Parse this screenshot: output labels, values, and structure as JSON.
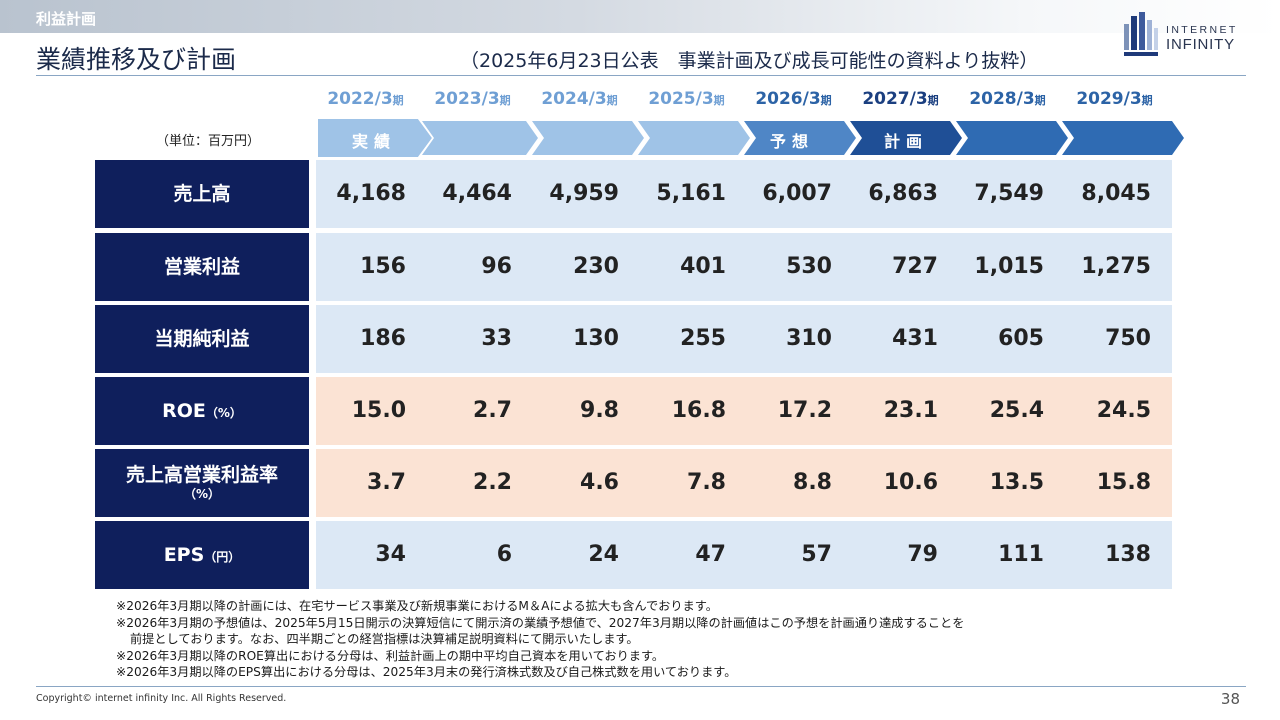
{
  "header": {
    "section_label": "利益計画",
    "title": "業績推移及び計画",
    "subtitle": "（2025年6月23日公表　事業計画及び成長可能性の資料より抜粋）"
  },
  "logo": {
    "line1": "INTERNET",
    "line2": "INFINITY"
  },
  "table": {
    "unit": "（単位：百万円）",
    "period_suffix": "期",
    "periods": [
      {
        "year": "2022/3",
        "color": "#6f9fd4"
      },
      {
        "year": "2023/3",
        "color": "#6f9fd4"
      },
      {
        "year": "2024/3",
        "color": "#6f9fd4"
      },
      {
        "year": "2025/3",
        "color": "#6f9fd4"
      },
      {
        "year": "2026/3",
        "color": "#2c63a6"
      },
      {
        "year": "2027/3",
        "color": "#1b3f80"
      },
      {
        "year": "2028/3",
        "color": "#2c63a6"
      },
      {
        "year": "2029/3",
        "color": "#2c63a6"
      }
    ],
    "phase_labels": {
      "actual": "実績",
      "forecast": "予想",
      "plan": "計画"
    },
    "rows": [
      {
        "label": "売上高",
        "unit_suffix": "",
        "label2": "",
        "values": [
          "4,168",
          "4,464",
          "4,959",
          "5,161",
          "6,007",
          "6,863",
          "7,549",
          "8,045"
        ]
      },
      {
        "label": "営業利益",
        "unit_suffix": "",
        "label2": "",
        "values": [
          "156",
          "96",
          "230",
          "401",
          "530",
          "727",
          "1,015",
          "1,275"
        ]
      },
      {
        "label": "当期純利益",
        "unit_suffix": "",
        "label2": "",
        "values": [
          "186",
          "33",
          "130",
          "255",
          "310",
          "431",
          "605",
          "750"
        ]
      },
      {
        "label": "ROE",
        "unit_suffix": "（%）",
        "label2": "",
        "values": [
          "15.0",
          "2.7",
          "9.8",
          "16.8",
          "17.2",
          "23.1",
          "25.4",
          "24.5"
        ]
      },
      {
        "label": "売上高営業利益率",
        "unit_suffix": "",
        "label2": "（%）",
        "values": [
          "3.7",
          "2.2",
          "4.6",
          "7.8",
          "8.8",
          "10.6",
          "13.5",
          "15.8"
        ]
      },
      {
        "label": "EPS",
        "unit_suffix": "（円）",
        "label2": "",
        "values": [
          "34",
          "6",
          "24",
          "47",
          "57",
          "79",
          "111",
          "138"
        ]
      }
    ],
    "colors": {
      "label_bg": "#0f1f5c",
      "band_blue": "#dce8f5",
      "band_peach": "#fbe3d4",
      "chev_light": "#9fc3e7",
      "chev_mid": "#4f86c6",
      "chev_dark": "#1f5fa6"
    }
  },
  "notes": [
    "※2026年3月期以降の計画には、在宅サービス事業及び新規事業におけるM＆Aによる拡大も含んでおります。",
    "※2026年3月期の予想値は、2025年5月15日開示の決算短信にて開示済の業績予想値で、2027年3月期以降の計画値はこの予想を計画通り達成することを",
    "前提としております。なお、四半期ごとの経営指標は決算補足説明資料にて開示いたします。",
    "※2026年3月期以降のROE算出における分母は、利益計画上の期中平均自己資本を用いております。",
    "※2026年3月期以降のEPS算出における分母は、2025年3月末の発行済株式数及び自己株式数を用いております。"
  ],
  "footer": {
    "copyright": "Copyright© internet infinity Inc. All Rights Reserved.",
    "page_number": "38"
  }
}
